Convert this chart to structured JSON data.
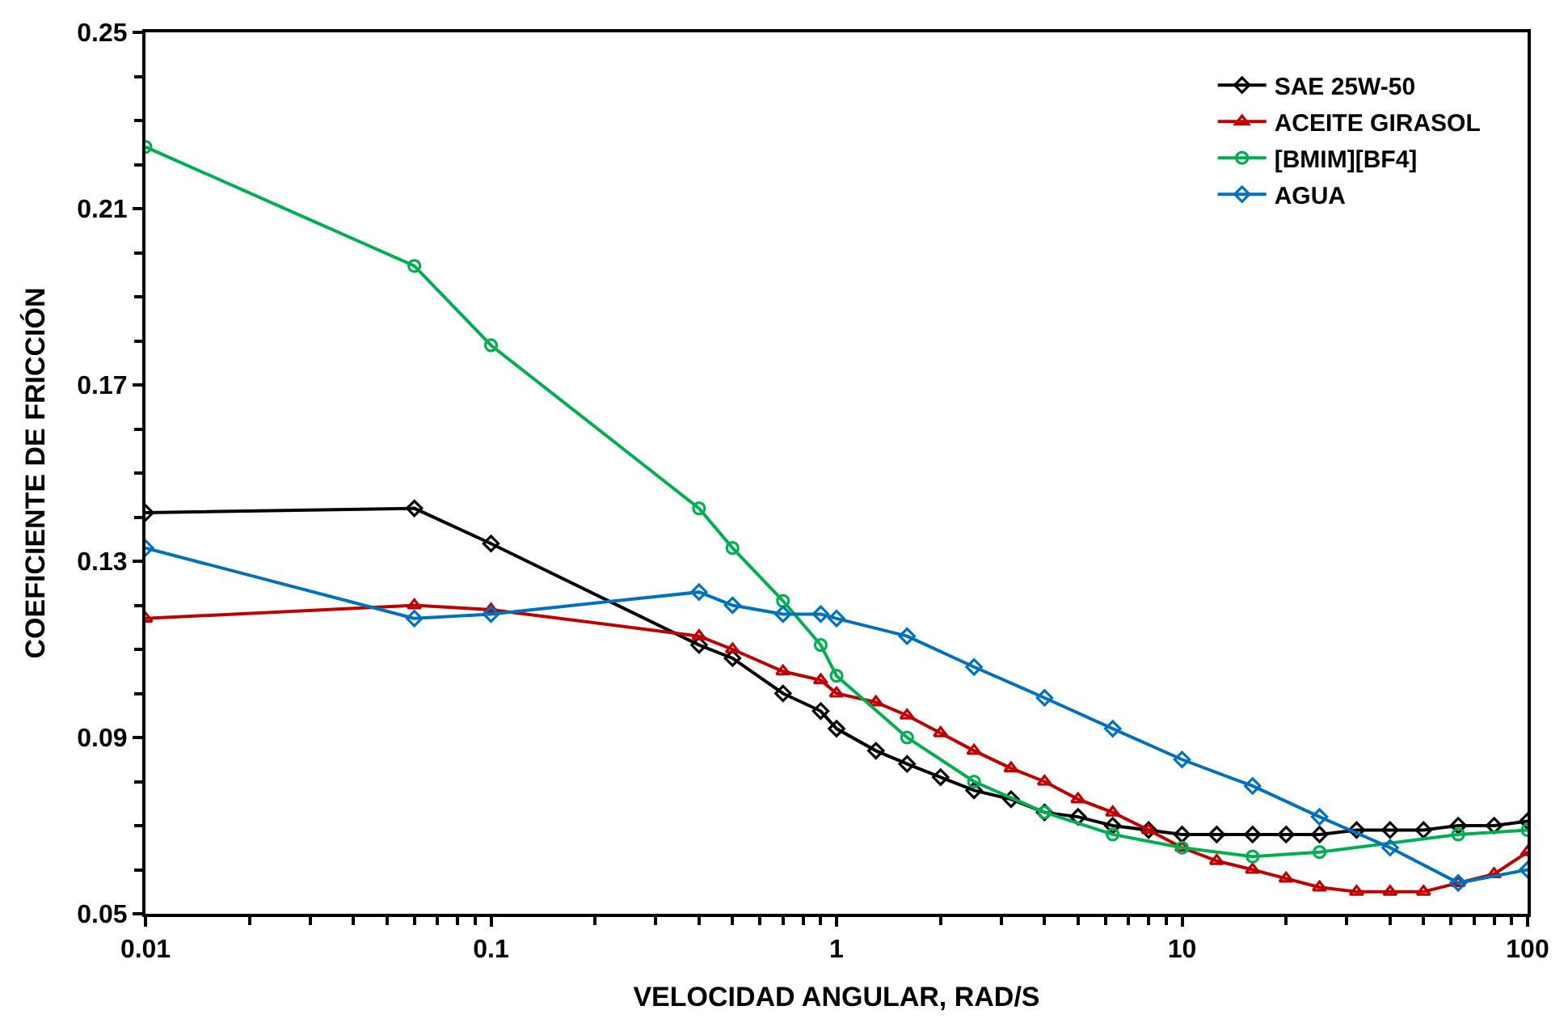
{
  "chart_data": {
    "type": "line",
    "xlabel": "VELOCIDAD ANGULAR, RAD/S",
    "ylabel": "COEFICIENTE DE FRICCIÓN",
    "log": "x",
    "xlim": [
      0.01,
      100
    ],
    "xticks": [
      0.01,
      0.1,
      1,
      10,
      100
    ],
    "ylim": [
      0.05,
      0.25
    ],
    "yticks": [
      0.05,
      0.09,
      0.13,
      0.17,
      0.21,
      0.25
    ],
    "legend": "top right",
    "line_style": "solid",
    "series": [
      {
        "name": "SAE 25W-50",
        "color": "#000000",
        "marker": "diamond",
        "x": [
          0.01,
          0.06,
          0.1,
          0.4,
          0.5,
          0.7,
          0.9,
          1,
          1.3,
          1.6,
          2,
          2.5,
          3.2,
          4,
          5,
          6.3,
          8,
          10,
          12.6,
          16,
          20,
          25,
          32,
          40,
          50,
          63,
          80,
          100
        ],
        "values": [
          0.141,
          0.142,
          0.134,
          0.111,
          0.108,
          0.1,
          0.096,
          0.092,
          0.087,
          0.084,
          0.081,
          0.078,
          0.076,
          0.073,
          0.072,
          0.07,
          0.069,
          0.068,
          0.068,
          0.068,
          0.068,
          0.068,
          0.069,
          0.069,
          0.069,
          0.07,
          0.07,
          0.071
        ]
      },
      {
        "name": "ACEITE GIRASOL",
        "color": "#c00000",
        "marker": "triangle",
        "x": [
          0.01,
          0.06,
          0.1,
          0.4,
          0.5,
          0.7,
          0.9,
          1,
          1.3,
          1.6,
          2,
          2.5,
          3.2,
          4,
          5,
          6.3,
          8,
          10,
          12.6,
          16,
          20,
          25,
          32,
          40,
          50,
          63,
          80,
          100
        ],
        "values": [
          0.117,
          0.12,
          0.119,
          0.113,
          0.11,
          0.105,
          0.103,
          0.1,
          0.098,
          0.095,
          0.091,
          0.087,
          0.083,
          0.08,
          0.076,
          0.073,
          0.069,
          0.065,
          0.062,
          0.06,
          0.058,
          0.056,
          0.055,
          0.055,
          0.055,
          0.057,
          0.059,
          0.064
        ]
      },
      {
        "name": "[BMIM][BF4]",
        "color": "#00b050",
        "marker": "circle",
        "x": [
          0.01,
          0.06,
          0.1,
          0.4,
          0.5,
          0.7,
          0.9,
          1,
          1.6,
          2.5,
          4,
          6.3,
          10,
          16,
          25,
          63,
          100
        ],
        "values": [
          0.224,
          0.197,
          0.179,
          0.142,
          0.133,
          0.121,
          0.111,
          0.104,
          0.09,
          0.08,
          0.073,
          0.068,
          0.065,
          0.063,
          0.064,
          0.068,
          0.069
        ]
      },
      {
        "name": "AGUA",
        "color": "#0070c0",
        "marker": "diamond",
        "x": [
          0.01,
          0.06,
          0.1,
          0.4,
          0.5,
          0.7,
          0.9,
          1,
          1.6,
          2.5,
          4,
          6.3,
          10,
          16,
          25,
          40,
          63,
          100
        ],
        "values": [
          0.133,
          0.117,
          0.118,
          0.123,
          0.12,
          0.118,
          0.118,
          0.117,
          0.113,
          0.106,
          0.099,
          0.092,
          0.085,
          0.079,
          0.072,
          0.065,
          0.057,
          0.06
        ]
      }
    ]
  }
}
